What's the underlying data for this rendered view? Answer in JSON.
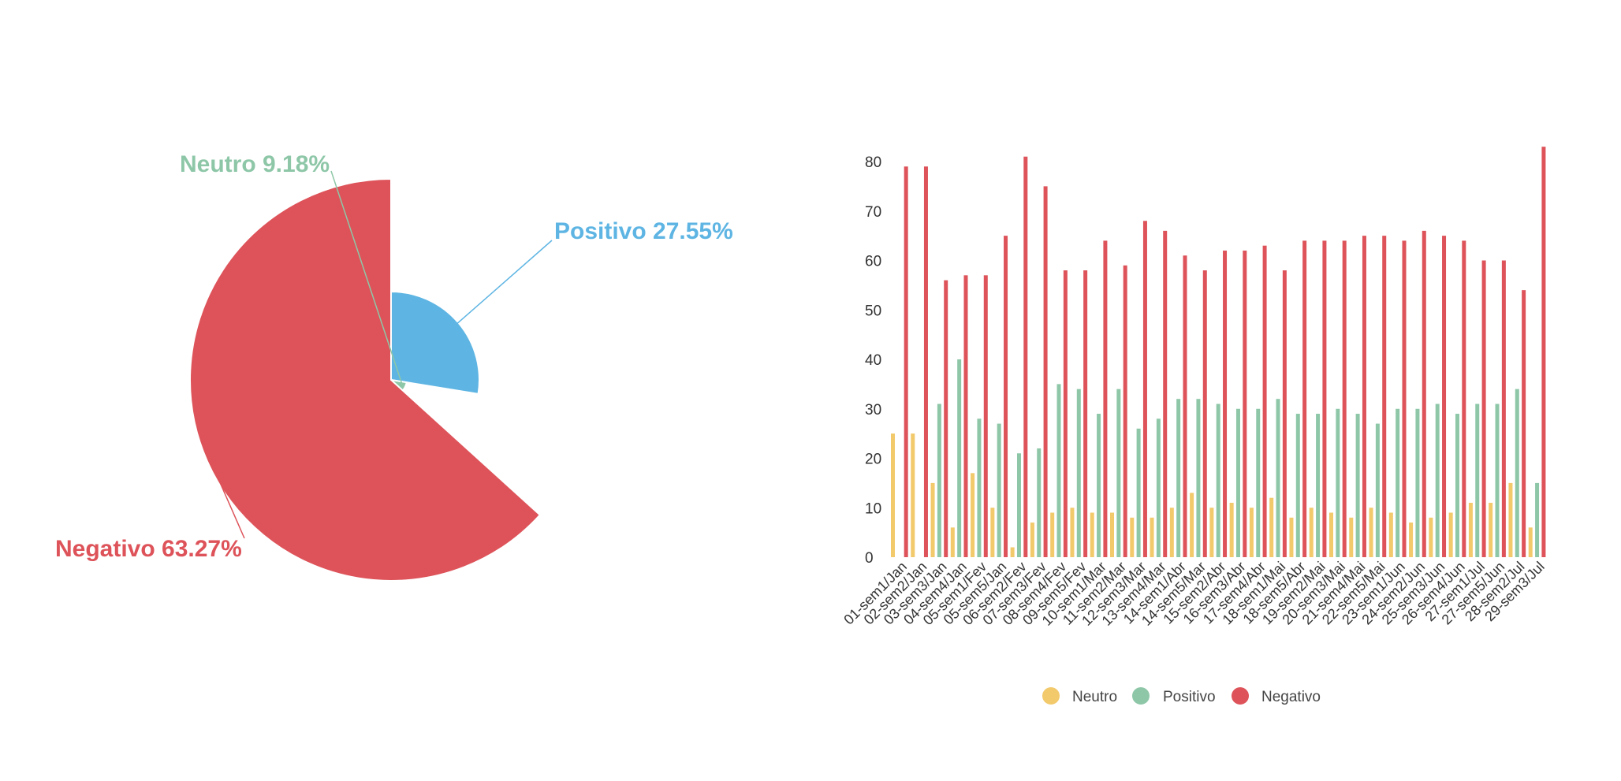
{
  "colors": {
    "neutro": "#f2c96b",
    "positivo": "#8ec7a8",
    "negativo": "#dd5359",
    "pie_positivo": "#5eb5e3"
  },
  "chart_data": [
    {
      "type": "pie",
      "slices": [
        {
          "name": "Positivo",
          "value": 27.55,
          "label": "Positivo 27.55%"
        },
        {
          "name": "Neutro",
          "value": 9.18,
          "label": "Neutro 9.18%"
        },
        {
          "name": "Negativo",
          "value": 63.27,
          "label": "Negativo 63.27%"
        }
      ]
    },
    {
      "type": "bar",
      "ylim": [
        0,
        80
      ],
      "yticks": [
        "0",
        "10",
        "20",
        "30",
        "40",
        "50",
        "60",
        "70",
        "80"
      ],
      "categories": [
        "01-sem1/Jan",
        "02-sem2/Jan",
        "03-sem3/Jan",
        "04-sem4/Jan",
        "05-sem1/Fev",
        "05-sem5/Jan",
        "06-sem2/Fev",
        "07-sem3/Fev",
        "08-sem4/Fev",
        "09-sem5/Fev",
        "10-sem1/Mar",
        "11-sem2/Mar",
        "12-sem3/Mar",
        "13-sem4/Mar",
        "14-sem1/Abr",
        "14-sem5/Mar",
        "15-sem2/Abr",
        "16-sem3/Abr",
        "17-sem4/Abr",
        "18-sem1/Mai",
        "18-sem5/Abr",
        "19-sem2/Mai",
        "20-sem3/Mai",
        "21-sem4/Mai",
        "22-sem5/Mai",
        "23-sem1/Jun",
        "24-sem2/Jun",
        "25-sem3/Jun",
        "26-sem4/Jun",
        "27-sem1/Jul",
        "27-sem5/Jun",
        "28-sem2/Jul",
        "29-sem3/Jul"
      ],
      "series": [
        {
          "name": "Neutro",
          "values": [
            25,
            25,
            15,
            6,
            17,
            10,
            2,
            7,
            9,
            10,
            9,
            9,
            8,
            8,
            10,
            13,
            10,
            11,
            10,
            12,
            8,
            10,
            9,
            8,
            10,
            9,
            7,
            8,
            9,
            11,
            11,
            15,
            6
          ]
        },
        {
          "name": "Positivo",
          "values": [
            0,
            0,
            31,
            40,
            28,
            27,
            21,
            22,
            35,
            34,
            29,
            34,
            26,
            28,
            32,
            32,
            31,
            30,
            30,
            32,
            29,
            29,
            30,
            29,
            27,
            30,
            30,
            31,
            29,
            31,
            31,
            34,
            15
          ]
        },
        {
          "name": "Negativo",
          "values": [
            79,
            79,
            56,
            57,
            57,
            65,
            81,
            75,
            58,
            58,
            64,
            59,
            68,
            66,
            61,
            58,
            62,
            62,
            63,
            58,
            64,
            64,
            64,
            65,
            65,
            64,
            66,
            65,
            64,
            60,
            60,
            54,
            83
          ]
        }
      ],
      "legend": [
        "Neutro",
        "Positivo",
        "Negativo"
      ],
      "legend_position": "bottom"
    }
  ]
}
